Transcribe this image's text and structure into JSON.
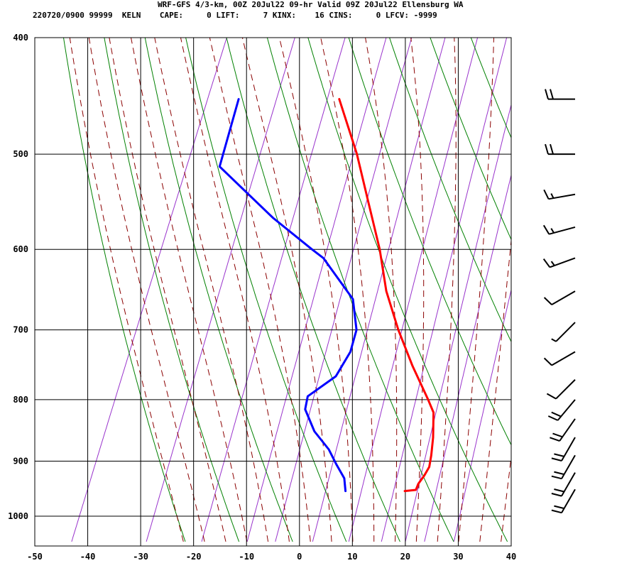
{
  "header": {
    "title": "WRF-GFS 4/3-km, 00Z 20Jul22 09-hr Valid 09Z 20Jul22 Ellensburg WA",
    "run_id": "220720/0900",
    "station_num": "99999",
    "station_id": "KELN",
    "stats": [
      {
        "label": "CAPE:",
        "value": "0"
      },
      {
        "label": "LIFT:",
        "value": "7"
      },
      {
        "label": "KINX:",
        "value": "16"
      },
      {
        "label": "CINS:",
        "value": "0"
      },
      {
        "label": "LFCV:",
        "value": "-9999"
      }
    ]
  },
  "colors": {
    "temperature": "#ff0000",
    "dewpoint": "#0000ff",
    "dry_adiabat": "#008000",
    "moist_adiabat": "#8b0000",
    "mixing_ratio": "#9933cc",
    "grid": "#000000"
  },
  "chart_data": {
    "type": "line",
    "title": "",
    "xlabel": "",
    "ylabel": "",
    "x_ticks": [
      -50,
      -40,
      -30,
      -20,
      -10,
      0,
      10,
      20,
      30,
      40
    ],
    "x_tick_labels": [
      "-50",
      "-40",
      "-30",
      "-20",
      "-10",
      "0",
      "10",
      "20",
      "30",
      "40"
    ],
    "xlim": [
      -50,
      40
    ],
    "y_ticks": [
      400,
      500,
      600,
      700,
      800,
      900,
      1000
    ],
    "y_tick_labels": [
      "400",
      "500",
      "600",
      "700",
      "800",
      "900",
      "1000"
    ],
    "ylim": [
      400,
      1050
    ],
    "y_scale": "log",
    "grid": true,
    "series": [
      {
        "key": "temperature",
        "points": [
          {
            "p": 953,
            "t": 18.0
          },
          {
            "p": 951,
            "t": 20.0
          },
          {
            "p": 940,
            "t": 20.0
          },
          {
            "p": 925,
            "t": 20.5
          },
          {
            "p": 910,
            "t": 20.8
          },
          {
            "p": 890,
            "t": 20.3
          },
          {
            "p": 860,
            "t": 19.3
          },
          {
            "p": 820,
            "t": 17.5
          },
          {
            "p": 800,
            "t": 15.5
          },
          {
            "p": 750,
            "t": 10.0
          },
          {
            "p": 700,
            "t": 4.6
          },
          {
            "p": 650,
            "t": -0.6
          },
          {
            "p": 600,
            "t": -5.0
          },
          {
            "p": 550,
            "t": -10.5
          },
          {
            "p": 500,
            "t": -16.5
          },
          {
            "p": 450,
            "t": -24.0
          }
        ]
      },
      {
        "key": "dewpoint",
        "points": [
          {
            "p": 953,
            "t": 6.8
          },
          {
            "p": 930,
            "t": 5.6
          },
          {
            "p": 905,
            "t": 3.0
          },
          {
            "p": 880,
            "t": 0.5
          },
          {
            "p": 850,
            "t": -3.6
          },
          {
            "p": 815,
            "t": -7.0
          },
          {
            "p": 795,
            "t": -7.5
          },
          {
            "p": 765,
            "t": -3.7
          },
          {
            "p": 730,
            "t": -2.8
          },
          {
            "p": 700,
            "t": -3.3
          },
          {
            "p": 660,
            "t": -6.3
          },
          {
            "p": 610,
            "t": -15.0
          },
          {
            "p": 600,
            "t": -17.8
          },
          {
            "p": 565,
            "t": -27.5
          },
          {
            "p": 512,
            "t": -41.5
          },
          {
            "p": 450,
            "t": -43.0
          }
        ]
      }
    ],
    "wind_barbs": [
      {
        "p": 450,
        "dir": 270,
        "kt": 20
      },
      {
        "p": 500,
        "dir": 270,
        "kt": 20
      },
      {
        "p": 540,
        "dir": 260,
        "kt": 15
      },
      {
        "p": 575,
        "dir": 255,
        "kt": 15
      },
      {
        "p": 610,
        "dir": 250,
        "kt": 15
      },
      {
        "p": 650,
        "dir": 240,
        "kt": 10
      },
      {
        "p": 690,
        "dir": 225,
        "kt": 5
      },
      {
        "p": 730,
        "dir": 240,
        "kt": 10
      },
      {
        "p": 770,
        "dir": 225,
        "kt": 10
      },
      {
        "p": 800,
        "dir": 220,
        "kt": 20
      },
      {
        "p": 830,
        "dir": 215,
        "kt": 20
      },
      {
        "p": 860,
        "dir": 210,
        "kt": 20
      },
      {
        "p": 890,
        "dir": 210,
        "kt": 20
      },
      {
        "p": 920,
        "dir": 210,
        "kt": 20
      },
      {
        "p": 950,
        "dir": 210,
        "kt": 20
      }
    ]
  }
}
